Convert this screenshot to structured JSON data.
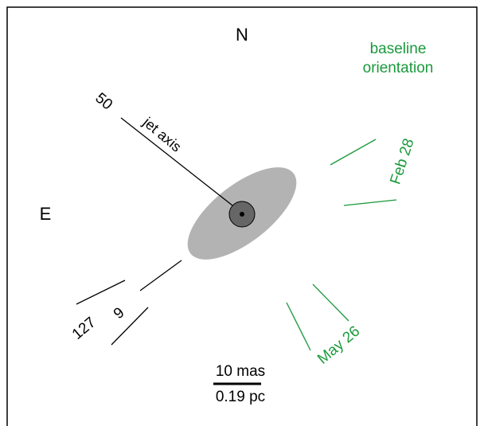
{
  "compass": {
    "north": "N",
    "east": "E"
  },
  "legend": {
    "line1": "baseline",
    "line2": "orientation"
  },
  "jet": {
    "angle_label": "50",
    "axis_label": "jet axis"
  },
  "baselines": {
    "feb": "Feb 28",
    "may": "May 26"
  },
  "other_angles": {
    "a": "127",
    "b": "9"
  },
  "scale": {
    "angular": "10 mas",
    "linear": "0.19 pc"
  }
}
